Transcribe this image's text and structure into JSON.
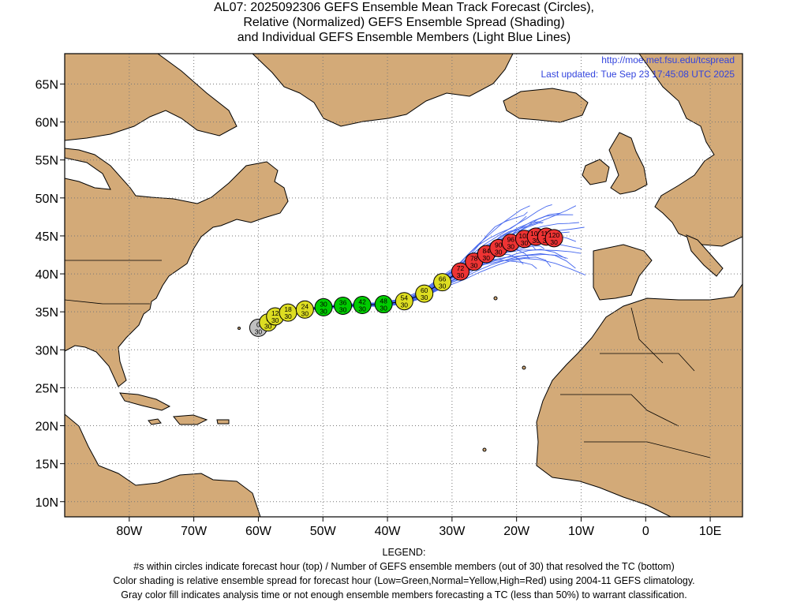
{
  "title": {
    "line1": "AL07: 2025092306 GEFS Ensemble Mean Track Forecast (Circles),",
    "line2": "Relative (Normalized) GEFS Ensemble Spread (Shading)",
    "line3": "and Individual GEFS Ensemble Members (Light Blue Lines)"
  },
  "source_url": "http://moe.met.fsu.edu/tcspread",
  "last_updated": "Last updated: Tue Sep 23 17:45:08 UTC 2025",
  "axes": {
    "lon_ticks": [
      {
        "lon": -80,
        "label": "80W"
      },
      {
        "lon": -70,
        "label": "70W"
      },
      {
        "lon": -60,
        "label": "60W"
      },
      {
        "lon": -50,
        "label": "50W"
      },
      {
        "lon": -40,
        "label": "40W"
      },
      {
        "lon": -30,
        "label": "30W"
      },
      {
        "lon": -20,
        "label": "20W"
      },
      {
        "lon": -10,
        "label": "10W"
      },
      {
        "lon": 0,
        "label": "0"
      },
      {
        "lon": 10,
        "label": "10E"
      }
    ],
    "lat_ticks": [
      {
        "lat": 65,
        "label": "65N"
      },
      {
        "lat": 60,
        "label": "60N"
      },
      {
        "lat": 55,
        "label": "55N"
      },
      {
        "lat": 50,
        "label": "50N"
      },
      {
        "lat": 45,
        "label": "45N"
      },
      {
        "lat": 40,
        "label": "40N"
      },
      {
        "lat": 35,
        "label": "35N"
      },
      {
        "lat": 30,
        "label": "30N"
      },
      {
        "lat": 25,
        "label": "25N"
      },
      {
        "lat": 20,
        "label": "20N"
      },
      {
        "lat": 15,
        "label": "15N"
      },
      {
        "lat": 10,
        "label": "10N"
      }
    ],
    "lon_range": [
      -90,
      15
    ],
    "lat_range": [
      8,
      69
    ],
    "grid": "dotted"
  },
  "colors": {
    "land": "#d3aa78",
    "ocean": "#ffffff",
    "ensemble_lines": "#4466ee",
    "low_spread": "#00cc00",
    "normal_spread": "#dddd22",
    "high_spread": "#ee3333",
    "analysis_gray": "#c0c0c0",
    "url_text": "#3344dd"
  },
  "track": [
    {
      "hour": "0",
      "members": "30",
      "lon": -60.0,
      "lat": 32.9,
      "spread": "gray"
    },
    {
      "hour": "6",
      "members": "30",
      "lon": -58.5,
      "lat": 33.6,
      "spread": "yellow"
    },
    {
      "hour": "12",
      "members": "30",
      "lon": -57.4,
      "lat": 34.4,
      "spread": "yellow"
    },
    {
      "hour": "18",
      "members": "30",
      "lon": -55.4,
      "lat": 34.9,
      "spread": "yellow"
    },
    {
      "hour": "24",
      "members": "30",
      "lon": -52.8,
      "lat": 35.3,
      "spread": "yellow"
    },
    {
      "hour": "30",
      "members": "30",
      "lon": -49.9,
      "lat": 35.6,
      "spread": "green"
    },
    {
      "hour": "36",
      "members": "30",
      "lon": -46.9,
      "lat": 35.8,
      "spread": "green"
    },
    {
      "hour": "42",
      "members": "30",
      "lon": -43.9,
      "lat": 35.9,
      "spread": "green"
    },
    {
      "hour": "48",
      "members": "30",
      "lon": -40.6,
      "lat": 36.0,
      "spread": "green"
    },
    {
      "hour": "54",
      "members": "30",
      "lon": -37.4,
      "lat": 36.4,
      "spread": "yellow"
    },
    {
      "hour": "60",
      "members": "30",
      "lon": -34.3,
      "lat": 37.4,
      "spread": "yellow"
    },
    {
      "hour": "66",
      "members": "30",
      "lon": -31.5,
      "lat": 38.9,
      "spread": "yellow"
    },
    {
      "hour": "72",
      "members": "30",
      "lon": -28.7,
      "lat": 40.3,
      "spread": "red"
    },
    {
      "hour": "78",
      "members": "30",
      "lon": -26.6,
      "lat": 41.6,
      "spread": "red"
    },
    {
      "hour": "84",
      "members": "30",
      "lon": -24.7,
      "lat": 42.6,
      "spread": "red"
    },
    {
      "hour": "90",
      "members": "30",
      "lon": -22.8,
      "lat": 43.4,
      "spread": "red"
    },
    {
      "hour": "96",
      "members": "30",
      "lon": -20.9,
      "lat": 44.1,
      "spread": "red"
    },
    {
      "hour": "102",
      "members": "30",
      "lon": -18.8,
      "lat": 44.6,
      "spread": "red"
    },
    {
      "hour": "108",
      "members": "30",
      "lon": -17.0,
      "lat": 44.9,
      "spread": "red"
    },
    {
      "hour": "114",
      "members": "30",
      "lon": -15.4,
      "lat": 44.9,
      "spread": "red"
    },
    {
      "hour": "120",
      "members": "30",
      "lon": -14.2,
      "lat": 44.7,
      "spread": "red"
    }
  ],
  "legend": {
    "heading": "LEGEND:",
    "line1": "#s within circles indicate forecast hour (top) / Number of GEFS ensemble members (out of 30) that resolved the TC (bottom)",
    "line2": "Color shading is relative ensemble spread for forecast hour (Low=Green,Normal=Yellow,High=Red) using 2004-11 GEFS climatology.",
    "line3": "Gray color fill indicates analysis time or not enough ensemble members forecasting a TC (less than 50%) to warrant classification."
  }
}
